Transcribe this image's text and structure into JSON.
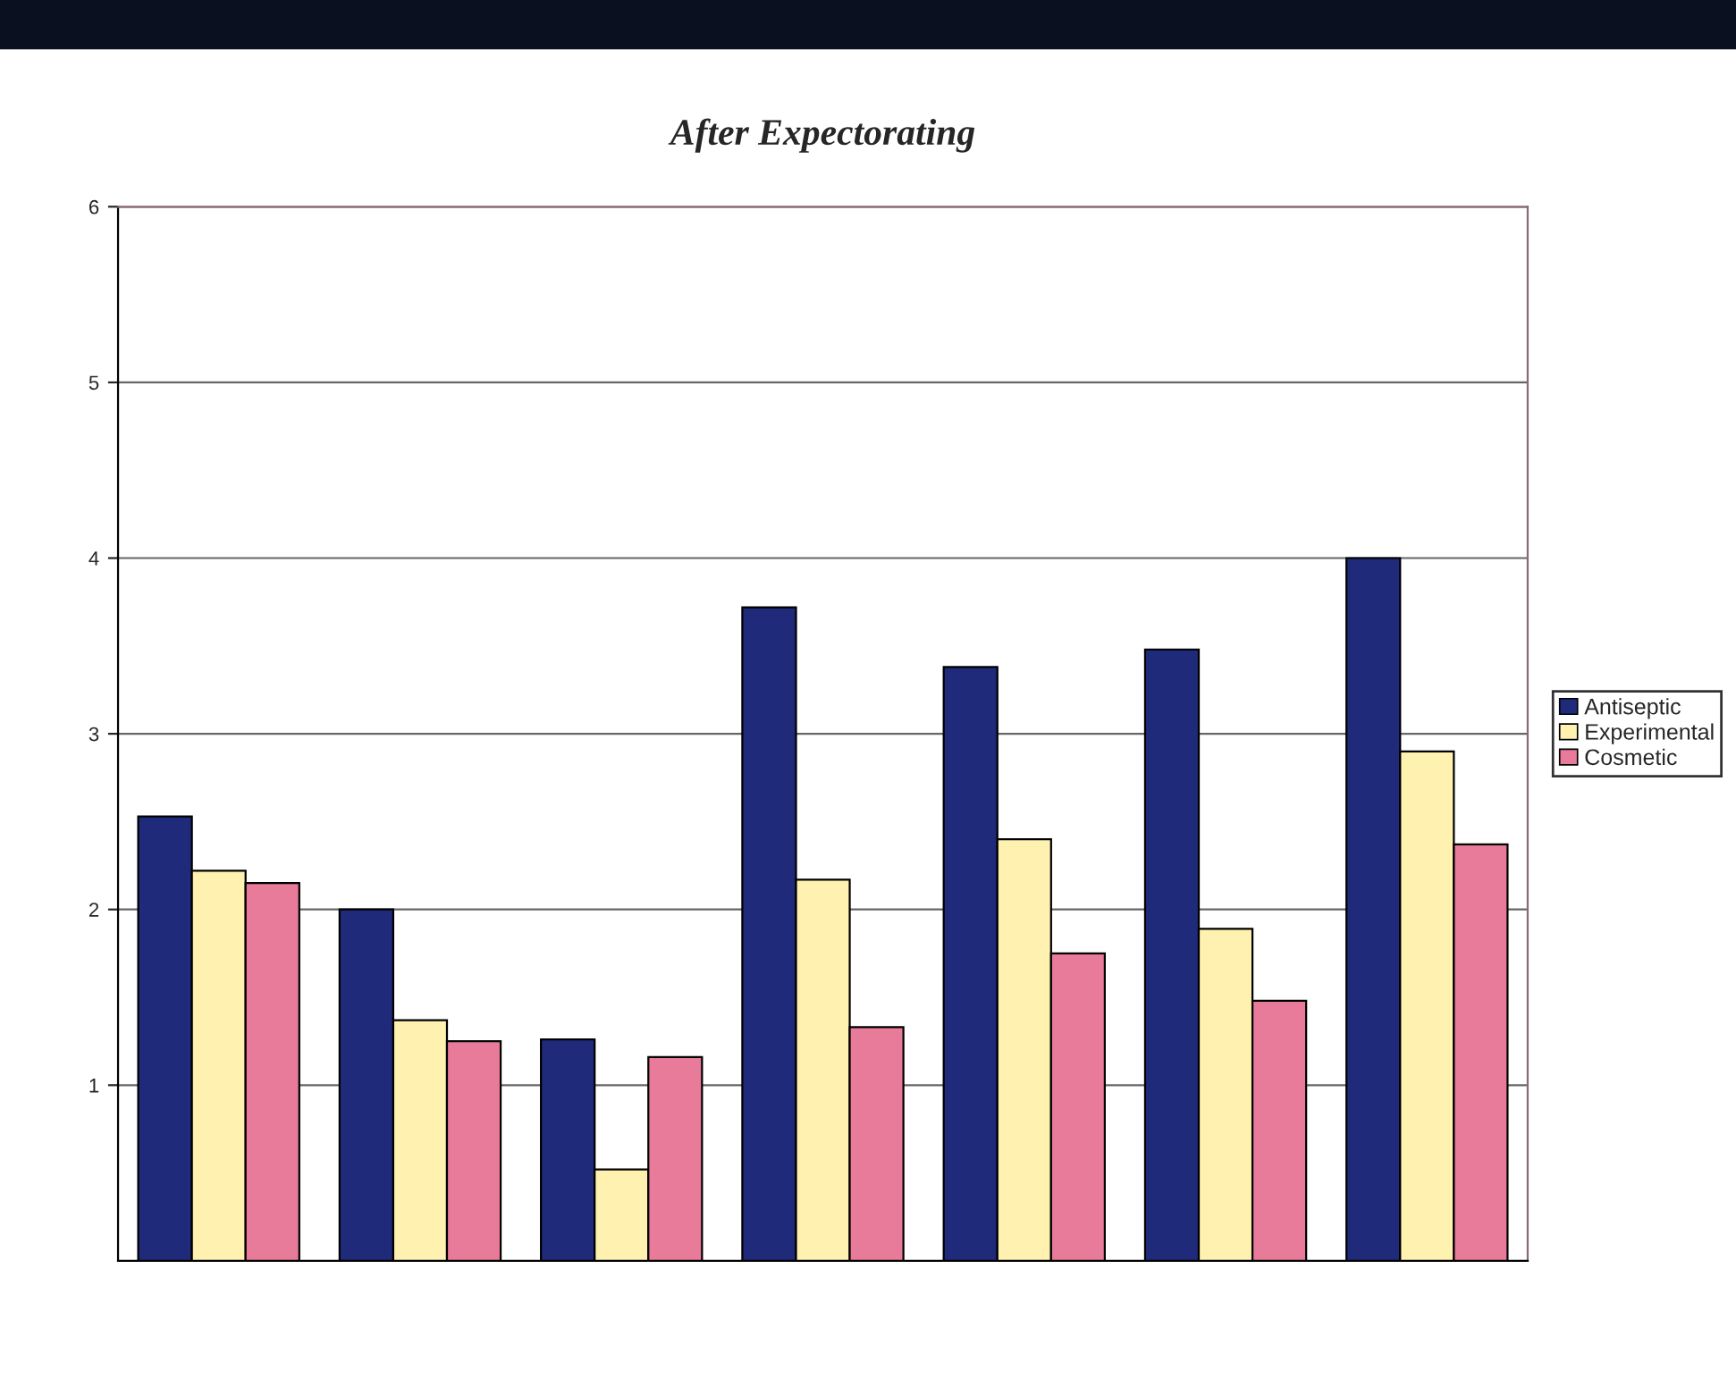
{
  "chart_data": {
    "type": "bar",
    "title": "After Expectorating",
    "categories": [
      null,
      null,
      null,
      null,
      null,
      null,
      null
    ],
    "series": [
      {
        "name": "Antiseptic",
        "color": "#1f2a7a",
        "values": [
          2.53,
          2.0,
          1.26,
          3.72,
          3.38,
          3.48,
          4.0
        ]
      },
      {
        "name": "Experimental",
        "color": "#fff2b0",
        "values": [
          2.22,
          1.37,
          0.52,
          2.17,
          2.4,
          1.89,
          2.9
        ]
      },
      {
        "name": "Cosmetic",
        "color": "#e87a9a",
        "values": [
          2.15,
          1.25,
          1.16,
          1.33,
          1.75,
          1.48,
          2.37
        ]
      }
    ],
    "ylim": [
      0,
      6
    ],
    "yticks": [
      1,
      2,
      3,
      4,
      5,
      6
    ],
    "grid": "y",
    "legend": "right"
  }
}
